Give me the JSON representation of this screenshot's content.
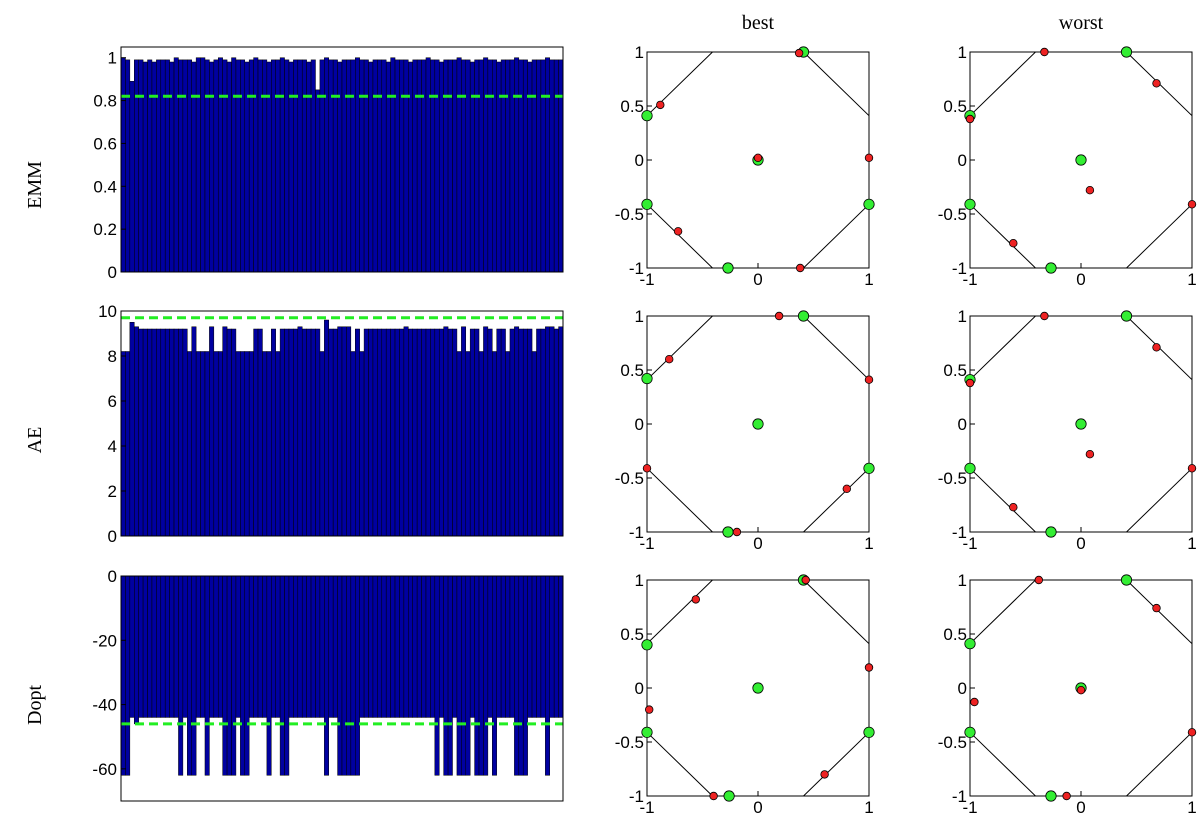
{
  "column_titles": {
    "best": "best",
    "worst": "worst"
  },
  "row_labels": [
    "EMM",
    "AE",
    "Dopt"
  ],
  "colors": {
    "bar_fill": "#0000a0",
    "bar_edge": "#000000",
    "reference_line": "#22ee22",
    "green_point": "#33ee33",
    "red_point": "#ee2222"
  },
  "chart_data": [
    {
      "type": "bar",
      "row_label": "EMM",
      "ylim": [
        0,
        1.05
      ],
      "yticks": [
        "0",
        "0.2",
        "0.4",
        "0.6",
        "0.8",
        "1"
      ],
      "reference_line": 0.82,
      "values": [
        1.0,
        0.99,
        0.89,
        0.99,
        0.99,
        0.98,
        0.99,
        0.98,
        0.99,
        0.99,
        0.99,
        0.98,
        1.0,
        0.99,
        0.99,
        0.99,
        0.98,
        1.0,
        1.0,
        0.99,
        0.98,
        0.99,
        1.0,
        0.99,
        0.98,
        1.0,
        0.99,
        0.99,
        0.98,
        0.99,
        1.0,
        0.99,
        0.99,
        0.98,
        0.99,
        0.99,
        1.0,
        0.99,
        0.98,
        0.99,
        0.99,
        0.99,
        0.98,
        0.99,
        0.85,
        0.99,
        1.0,
        0.99,
        0.99,
        0.98,
        0.99,
        0.99,
        0.99,
        1.0,
        0.99,
        0.99,
        0.98,
        0.99,
        0.99,
        0.99,
        0.98,
        1.0,
        0.99,
        0.99,
        0.99,
        0.98,
        0.99,
        0.99,
        0.99,
        1.0,
        0.99,
        0.99,
        0.98,
        0.99,
        0.99,
        0.99,
        1.0,
        0.99,
        0.99,
        0.98,
        0.99,
        0.99,
        1.0,
        0.99,
        0.99,
        0.98,
        0.99,
        0.99,
        0.99,
        1.0,
        0.99,
        0.99,
        0.98,
        0.99,
        0.99,
        0.99,
        1.0,
        0.99,
        0.99,
        0.99
      ]
    },
    {
      "type": "bar",
      "row_label": "AE",
      "ylim": [
        0,
        10
      ],
      "yticks": [
        "0",
        "2",
        "4",
        "6",
        "8",
        "10"
      ],
      "reference_line": 9.7,
      "values": [
        8.2,
        8.2,
        9.5,
        9.3,
        9.2,
        9.2,
        9.2,
        9.2,
        9.2,
        9.2,
        9.2,
        9.2,
        9.2,
        9.2,
        9.2,
        8.2,
        9.3,
        8.2,
        8.2,
        8.2,
        9.3,
        8.2,
        8.2,
        9.3,
        9.2,
        9.2,
        8.2,
        8.2,
        8.2,
        8.2,
        9.2,
        9.2,
        8.2,
        8.2,
        9.2,
        8.2,
        9.2,
        9.2,
        9.2,
        9.2,
        9.3,
        9.2,
        9.2,
        9.2,
        9.2,
        8.2,
        9.6,
        9.2,
        9.2,
        9.3,
        9.3,
        9.3,
        8.2,
        9.2,
        8.2,
        9.2,
        9.2,
        9.2,
        9.2,
        9.2,
        9.2,
        9.2,
        9.2,
        9.2,
        9.3,
        9.2,
        9.2,
        9.2,
        9.2,
        9.2,
        9.2,
        9.2,
        9.2,
        9.3,
        9.2,
        9.2,
        8.2,
        9.3,
        8.2,
        9.2,
        9.2,
        8.2,
        9.3,
        9.2,
        8.2,
        9.2,
        9.2,
        8.2,
        9.2,
        9.3,
        9.2,
        9.2,
        9.2,
        8.2,
        9.2,
        9.2,
        9.3,
        9.3,
        9.2,
        9.3
      ]
    },
    {
      "type": "bar",
      "row_label": "Dopt",
      "ylim": [
        -70,
        0
      ],
      "yticks": [
        "0",
        "-20",
        "-40",
        "-60"
      ],
      "reference_line": -46,
      "values": [
        -62,
        -62,
        -44,
        -46,
        -44,
        -44,
        -44,
        -44,
        -44,
        -44,
        -44,
        -44,
        -44,
        -62,
        -44,
        -62,
        -62,
        -44,
        -44,
        -62,
        -44,
        -44,
        -44,
        -62,
        -62,
        -62,
        -44,
        -62,
        -62,
        -44,
        -44,
        -44,
        -44,
        -62,
        -44,
        -44,
        -62,
        -62,
        -44,
        -44,
        -44,
        -44,
        -44,
        -44,
        -44,
        -44,
        -62,
        -44,
        -44,
        -62,
        -62,
        -62,
        -62,
        -62,
        -44,
        -44,
        -44,
        -44,
        -44,
        -44,
        -44,
        -44,
        -44,
        -44,
        -44,
        -44,
        -44,
        -44,
        -44,
        -44,
        -44,
        -62,
        -44,
        -62,
        -62,
        -44,
        -62,
        -62,
        -62,
        -44,
        -62,
        -62,
        -62,
        -44,
        -62,
        -44,
        -44,
        -44,
        -44,
        -62,
        -62,
        -62,
        -44,
        -44,
        -44,
        -44,
        -62,
        -44,
        -44,
        -44
      ]
    },
    {
      "type": "scatter",
      "row_label": "EMM",
      "column": "best",
      "xlim": [
        -1,
        1
      ],
      "ylim": [
        -1,
        1
      ],
      "xticks": [
        "-1",
        "0",
        "1"
      ],
      "yticks": [
        "1",
        "0.5",
        "0",
        "-0.5",
        "-1"
      ],
      "green": [
        [
          -1,
          0.41
        ],
        [
          -1,
          -0.41
        ],
        [
          -0.27,
          -1
        ],
        [
          0.41,
          1
        ],
        [
          1,
          -0.41
        ],
        [
          0,
          0
        ]
      ],
      "red": [
        [
          -0.88,
          0.51
        ],
        [
          -0.72,
          -0.66
        ],
        [
          0.37,
          0.99
        ],
        [
          0,
          0.02
        ],
        [
          1,
          0.02
        ],
        [
          0.38,
          -1
        ]
      ]
    },
    {
      "type": "scatter",
      "row_label": "EMM",
      "column": "worst",
      "xlim": [
        -1,
        1
      ],
      "ylim": [
        -1,
        1
      ],
      "xticks": [
        "-1",
        "0",
        "1"
      ],
      "yticks": [
        "1",
        "0.5",
        "0",
        "-0.5",
        "-1"
      ],
      "green": [
        [
          -1,
          0.41
        ],
        [
          -1,
          -0.41
        ],
        [
          -0.27,
          -1
        ],
        [
          0.41,
          1
        ],
        [
          0,
          0
        ]
      ],
      "red": [
        [
          -1,
          0.38
        ],
        [
          -0.33,
          1
        ],
        [
          0.68,
          0.71
        ],
        [
          0.08,
          -0.28
        ],
        [
          1,
          -0.41
        ],
        [
          -0.61,
          -0.77
        ]
      ]
    },
    {
      "type": "scatter",
      "row_label": "AE",
      "column": "best",
      "xlim": [
        -1,
        1
      ],
      "ylim": [
        -1,
        1
      ],
      "xticks": [
        "-1",
        "0",
        "1"
      ],
      "yticks": [
        "1",
        "0.5",
        "0",
        "-0.5",
        "-1"
      ],
      "green": [
        [
          -1,
          0.42
        ],
        [
          -0.27,
          -1
        ],
        [
          0.41,
          1
        ],
        [
          1,
          -0.41
        ],
        [
          0,
          0
        ]
      ],
      "red": [
        [
          -0.8,
          0.6
        ],
        [
          0.19,
          1
        ],
        [
          1,
          0.41
        ],
        [
          -1,
          -0.41
        ],
        [
          0.8,
          -0.6
        ],
        [
          -0.19,
          -1
        ]
      ]
    },
    {
      "type": "scatter",
      "row_label": "AE",
      "column": "worst",
      "xlim": [
        -1,
        1
      ],
      "ylim": [
        -1,
        1
      ],
      "xticks": [
        "-1",
        "0",
        "1"
      ],
      "yticks": [
        "1",
        "0.5",
        "0",
        "-0.5",
        "-1"
      ],
      "green": [
        [
          -1,
          0.41
        ],
        [
          -1,
          -0.41
        ],
        [
          -0.27,
          -1
        ],
        [
          0.41,
          1
        ],
        [
          0,
          0
        ]
      ],
      "red": [
        [
          -1,
          0.38
        ],
        [
          -0.33,
          1
        ],
        [
          0.68,
          0.71
        ],
        [
          0.08,
          -0.28
        ],
        [
          1,
          -0.41
        ],
        [
          -0.61,
          -0.77
        ]
      ]
    },
    {
      "type": "scatter",
      "row_label": "Dopt",
      "column": "best",
      "xlim": [
        -1,
        1
      ],
      "ylim": [
        -1,
        1
      ],
      "xticks": [
        "-1",
        "0",
        "1"
      ],
      "yticks": [
        "1",
        "0.5",
        "0",
        "-0.5",
        "-1"
      ],
      "green": [
        [
          -1,
          0.4
        ],
        [
          -1,
          -0.41
        ],
        [
          -0.26,
          -1
        ],
        [
          0.41,
          1
        ],
        [
          1,
          -0.41
        ],
        [
          0,
          0
        ]
      ],
      "red": [
        [
          -0.56,
          0.82
        ],
        [
          0.43,
          1
        ],
        [
          1,
          0.19
        ],
        [
          -0.98,
          -0.2
        ],
        [
          0.6,
          -0.8
        ],
        [
          -0.4,
          -1
        ]
      ]
    },
    {
      "type": "scatter",
      "row_label": "Dopt",
      "column": "worst",
      "xlim": [
        -1,
        1
      ],
      "ylim": [
        -1,
        1
      ],
      "xticks": [
        "-1",
        "0",
        "1"
      ],
      "yticks": [
        "1",
        "0.5",
        "0",
        "-0.5",
        "-1"
      ],
      "green": [
        [
          -1,
          0.41
        ],
        [
          -1,
          -0.41
        ],
        [
          -0.27,
          -1
        ],
        [
          0.41,
          1
        ],
        [
          0,
          0
        ]
      ],
      "red": [
        [
          -0.38,
          1
        ],
        [
          0.68,
          0.74
        ],
        [
          -0.96,
          -0.13
        ],
        [
          1,
          -0.41
        ],
        [
          0,
          -0.02
        ],
        [
          -0.13,
          -1
        ]
      ]
    }
  ]
}
